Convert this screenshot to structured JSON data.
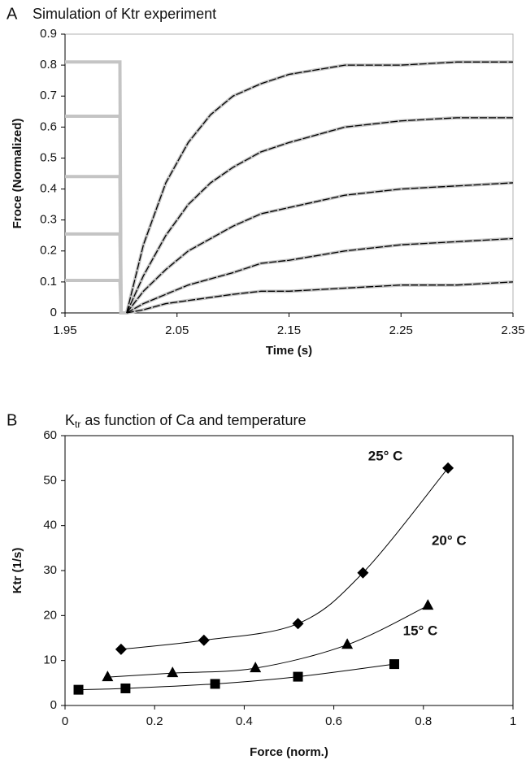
{
  "panel_labels": [
    "A",
    "B"
  ],
  "chart_data": [
    {
      "type": "line",
      "title": "Simulation of Ktr experiment",
      "x_label": "Time (s)",
      "y_label": "Froce (Normalized)",
      "x": [
        1.95,
        1.999,
        2.0,
        2.005,
        2.02,
        2.04,
        2.06,
        2.08,
        2.1,
        2.125,
        2.15,
        2.2,
        2.25,
        2.3,
        2.35
      ],
      "xlim": [
        1.95,
        2.35
      ],
      "xticks": [
        1.95,
        2.05,
        2.15,
        2.25,
        2.35
      ],
      "ylim": [
        0,
        0.9
      ],
      "yticks": [
        0,
        0.1,
        0.2,
        0.3,
        0.4,
        0.5,
        0.6,
        0.7,
        0.8,
        0.9
      ],
      "frame_color": "#b0b0b0",
      "series": [
        {
          "color": "#c4c4c4",
          "width": 4,
          "dashed": false,
          "values": [
            0.81,
            0.81,
            0,
            0,
            0.22,
            0.42,
            0.55,
            0.64,
            0.7,
            0.74,
            0.77,
            0.8,
            0.8,
            0.81,
            0.81
          ]
        },
        {
          "color": "#c4c4c4",
          "width": 4,
          "dashed": false,
          "values": [
            0.635,
            0.635,
            0,
            0,
            0.12,
            0.25,
            0.35,
            0.42,
            0.47,
            0.52,
            0.55,
            0.6,
            0.62,
            0.63,
            0.63
          ]
        },
        {
          "color": "#c4c4c4",
          "width": 4,
          "dashed": false,
          "values": [
            0.44,
            0.44,
            0,
            0,
            0.07,
            0.14,
            0.2,
            0.24,
            0.28,
            0.32,
            0.34,
            0.38,
            0.4,
            0.41,
            0.42
          ]
        },
        {
          "color": "#c4c4c4",
          "width": 4,
          "dashed": false,
          "values": [
            0.255,
            0.255,
            0,
            0,
            0.03,
            0.06,
            0.09,
            0.11,
            0.13,
            0.16,
            0.17,
            0.2,
            0.22,
            0.23,
            0.24
          ]
        },
        {
          "color": "#c4c4c4",
          "width": 4,
          "dashed": false,
          "values": [
            0.105,
            0.105,
            0,
            0,
            0.01,
            0.03,
            0.04,
            0.05,
            0.06,
            0.07,
            0.07,
            0.08,
            0.09,
            0.09,
            0.1
          ]
        },
        {
          "color": "#000000",
          "width": 1.3,
          "dashed": true,
          "values": [
            null,
            null,
            null,
            0,
            0.22,
            0.42,
            0.55,
            0.64,
            0.7,
            0.74,
            0.77,
            0.8,
            0.8,
            0.81,
            0.81
          ]
        },
        {
          "color": "#000000",
          "width": 1.3,
          "dashed": true,
          "values": [
            null,
            null,
            null,
            0,
            0.12,
            0.25,
            0.35,
            0.42,
            0.47,
            0.52,
            0.55,
            0.6,
            0.62,
            0.63,
            0.63
          ]
        },
        {
          "color": "#000000",
          "width": 1.3,
          "dashed": true,
          "values": [
            null,
            null,
            null,
            0,
            0.07,
            0.14,
            0.2,
            0.24,
            0.28,
            0.32,
            0.34,
            0.38,
            0.4,
            0.41,
            0.42
          ]
        },
        {
          "color": "#000000",
          "width": 1.3,
          "dashed": true,
          "values": [
            null,
            null,
            null,
            0,
            0.03,
            0.06,
            0.09,
            0.11,
            0.13,
            0.16,
            0.17,
            0.2,
            0.22,
            0.23,
            0.24
          ]
        },
        {
          "color": "#000000",
          "width": 1.3,
          "dashed": true,
          "values": [
            null,
            null,
            null,
            0,
            0.01,
            0.03,
            0.04,
            0.05,
            0.06,
            0.07,
            0.07,
            0.08,
            0.09,
            0.09,
            0.1
          ]
        }
      ]
    },
    {
      "type": "scatter",
      "title": {
        "base": "K",
        "subscript": "tr",
        "rest": " as function of Ca and temperature"
      },
      "x_label": "Force (norm.)",
      "y_label": "Ktr (1/s)",
      "xlim": [
        0,
        1
      ],
      "xticks": [
        0,
        0.2,
        0.4,
        0.6,
        0.8,
        1
      ],
      "ylim": [
        0,
        60
      ],
      "yticks": [
        0,
        10,
        20,
        30,
        40,
        50,
        60
      ],
      "frame_color": "#000000",
      "line": true,
      "series": [
        {
          "name": "25°  C",
          "color": "#000000",
          "marker": "diamond",
          "x": [
            0.125,
            0.31,
            0.52,
            0.665,
            0.855
          ],
          "values": [
            12.5,
            14.5,
            18.2,
            29.5,
            52.8
          ]
        },
        {
          "name": "20°  C",
          "color": "#000000",
          "marker": "triangle",
          "x": [
            0.095,
            0.24,
            0.425,
            0.63,
            0.81
          ],
          "values": [
            6.3,
            7.2,
            8.3,
            13.5,
            22.2
          ]
        },
        {
          "name": "15°  C",
          "color": "#000000",
          "marker": "square",
          "x": [
            0.03,
            0.135,
            0.335,
            0.52,
            0.735
          ],
          "values": [
            3.5,
            3.8,
            4.8,
            6.4,
            9.2
          ]
        }
      ]
    }
  ]
}
